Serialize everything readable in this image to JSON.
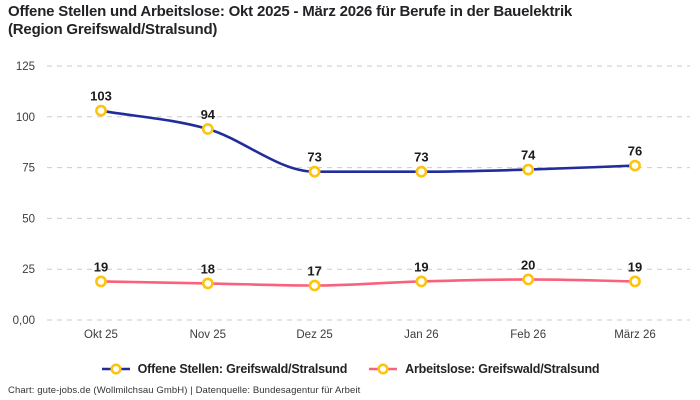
{
  "title": {
    "line1": "Offene Stellen und Arbeitslose: Okt 2025 - März 2026 für Berufe in der Bauelektrik",
    "line2": "(Region Greifswald/Stralsund)"
  },
  "footer": "Chart: gute-jobs.de (Wollmilchsau GmbH) | Datenquelle: Bundesagentur für Arbeit",
  "colors": {
    "open_positions_line": "#202D9B",
    "unemployed_line": "#FA617B",
    "marker_ring": "#FCC40C",
    "marker_fill": "#FFFFFF",
    "gridline": "#CBCBCB",
    "text": "#222326"
  },
  "chart_data": {
    "type": "line",
    "title": "Offene Stellen und Arbeitslose: Okt 2025 - März 2026 für Berufe in der Bauelektrik (Region Greifswald/Stralsund)",
    "categories": [
      "Okt 25",
      "Nov 25",
      "Dez 25",
      "Jan 26",
      "Feb 26",
      "März 26"
    ],
    "series": [
      {
        "name": "Offene Stellen: Greifswald/Stralsund",
        "color": "#202D9B",
        "values": [
          103,
          94,
          73,
          73,
          74,
          76
        ]
      },
      {
        "name": "Arbeitslose: Greifswald/Stralsund",
        "color": "#FA617B",
        "values": [
          19,
          18,
          17,
          19,
          20,
          19
        ]
      }
    ],
    "y_ticks": [
      {
        "value": 125,
        "label": "125"
      },
      {
        "value": 100,
        "label": "100"
      },
      {
        "value": 75,
        "label": "75"
      },
      {
        "value": 50,
        "label": "50"
      },
      {
        "value": 25,
        "label": "25"
      },
      {
        "value": 0,
        "label": "0,00"
      }
    ],
    "ylim": [
      0,
      125
    ],
    "xlabel": "",
    "ylabel": "",
    "grid": "horizontal-dashed",
    "legend_position": "bottom",
    "marker": "circle-ring-gold",
    "curve": "smooth-monotone"
  }
}
